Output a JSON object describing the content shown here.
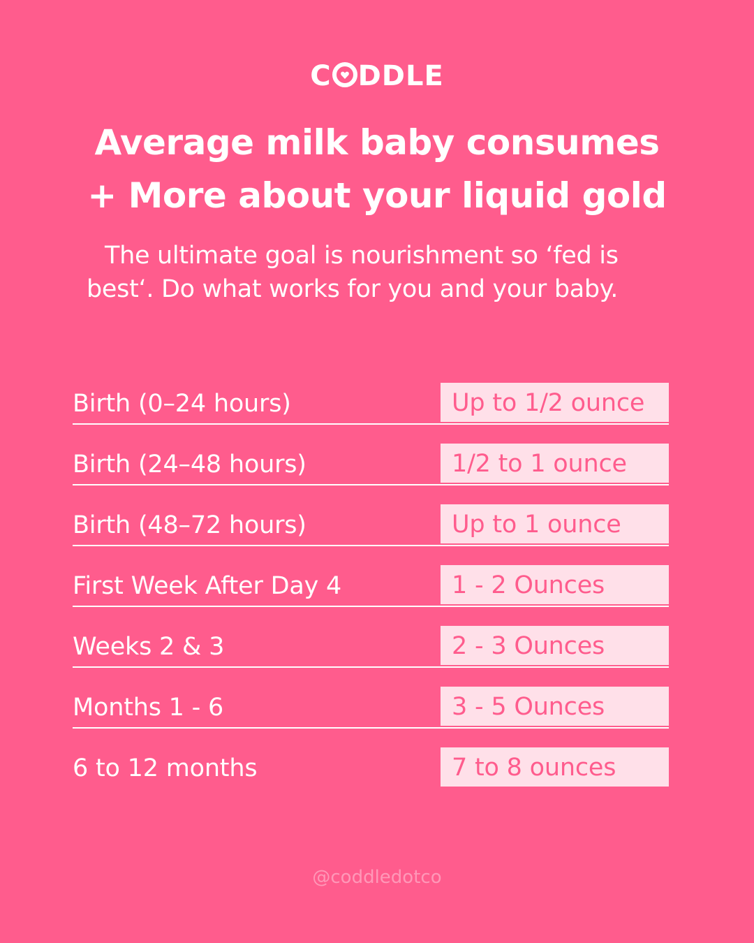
{
  "brand": {
    "logo_prefix": "C",
    "logo_suffix": "DDLE",
    "logo_icon": "heart-o-icon"
  },
  "header": {
    "title_line1": "Average milk baby consumes",
    "title_line2": "+ More about your liquid gold",
    "subtitle_line1": "The ultimate goal is nourishment so ‘fed is",
    "subtitle_line2": "best‘.  Do what works for you and your baby."
  },
  "table": {
    "rows": [
      {
        "label": "Birth (0–24 hours)",
        "value": "Up to 1/2 ounce"
      },
      {
        "label": "Birth (24–48 hours)",
        "value": "1/2 to 1 ounce"
      },
      {
        "label": "Birth (48–72 hours)",
        "value": "Up to 1 ounce"
      },
      {
        "label": "First Week After Day 4",
        "value": "1 - 2 Ounces"
      },
      {
        "label": "Weeks 2 & 3",
        "value": "2 - 3 Ounces"
      },
      {
        "label": "Months 1 - 6",
        "value": "3 - 5 Ounces"
      },
      {
        "label": "6 to 12 months",
        "value": "7 to 8 ounces"
      }
    ]
  },
  "footer": {
    "handle": "@coddledotco"
  },
  "colors": {
    "background": "#ff5c8d",
    "value_box": "#ffe0e9",
    "text": "#ffffff",
    "handle": "#ff98b8"
  }
}
